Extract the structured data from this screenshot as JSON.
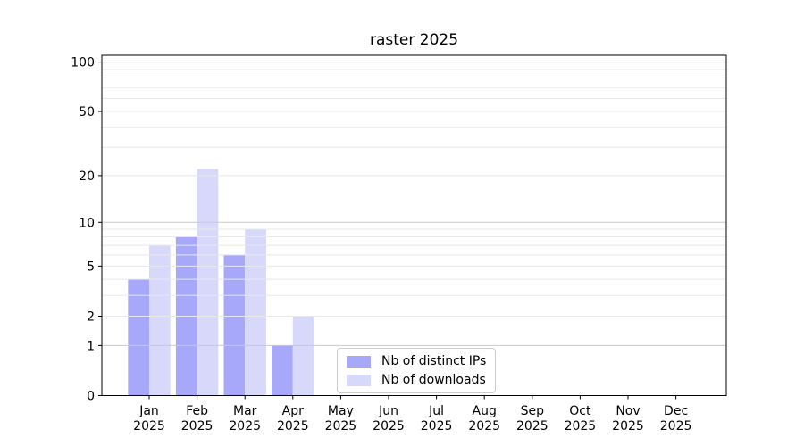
{
  "chart_data": {
    "type": "bar",
    "title": "raster 2025",
    "categories": [
      "Jan",
      "Feb",
      "Mar",
      "Apr",
      "May",
      "Jun",
      "Jul",
      "Aug",
      "Sep",
      "Oct",
      "Nov",
      "Dec"
    ],
    "x_sub_label": "2025",
    "series": [
      {
        "name": "Nb of distinct IPs",
        "color": "#a8a8fa",
        "values": [
          4,
          8,
          6,
          1,
          0,
          0,
          0,
          0,
          0,
          0,
          0,
          0
        ]
      },
      {
        "name": "Nb of downloads",
        "color": "#d8d8fa",
        "values": [
          7,
          22,
          9,
          2,
          0,
          0,
          0,
          0,
          0,
          0,
          0,
          0
        ]
      }
    ],
    "y_axis": {
      "scale": "log1p",
      "tick_values": [
        0,
        1,
        2,
        5,
        10,
        20,
        50,
        100
      ],
      "max": 110
    },
    "grid": {
      "on": true,
      "major_values": [
        1,
        10,
        100
      ],
      "minor_values": [
        2,
        3,
        4,
        5,
        6,
        7,
        8,
        9,
        20,
        30,
        40,
        50,
        60,
        70,
        80,
        90
      ],
      "major_color": "#c9c9c9",
      "minor_color": "#e8e8e8"
    },
    "legend_position": "lower center",
    "frame_color": "#000000",
    "text_color": "#000000"
  }
}
